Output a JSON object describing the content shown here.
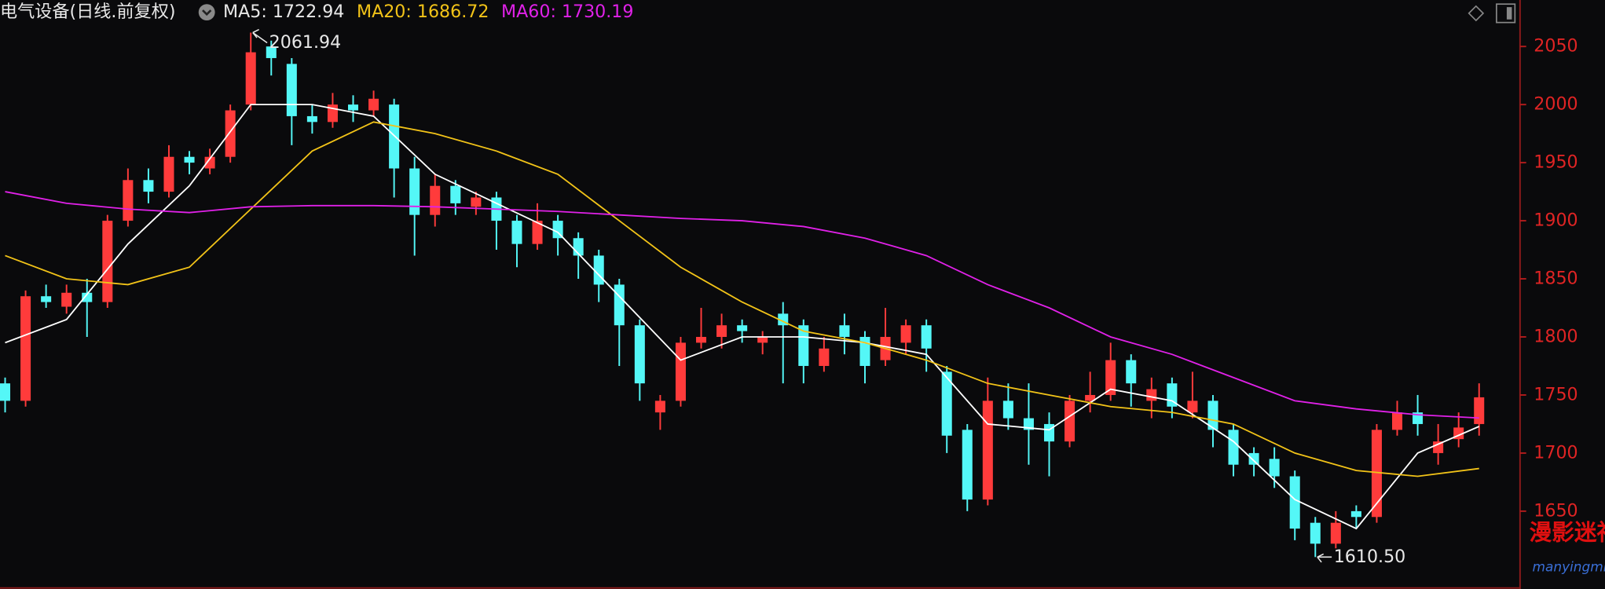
{
  "chart_data": {
    "type": "candlestick",
    "title": "电气设备(日线.前复权)",
    "ylim": [
      1583,
      2090
    ],
    "yticks": [
      1650,
      1700,
      1750,
      1800,
      1850,
      1900,
      1950,
      2000,
      2050
    ],
    "up_color": "#ff3b3b",
    "down_color": "#54f7f7",
    "ohlc": [
      [
        1760,
        1765,
        1735,
        1745
      ],
      [
        1745,
        1840,
        1740,
        1835
      ],
      [
        1835,
        1845,
        1825,
        1830
      ],
      [
        1826,
        1845,
        1820,
        1838
      ],
      [
        1838,
        1850,
        1800,
        1830
      ],
      [
        1830,
        1905,
        1825,
        1900
      ],
      [
        1900,
        1945,
        1895,
        1935
      ],
      [
        1935,
        1945,
        1915,
        1925
      ],
      [
        1925,
        1965,
        1920,
        1955
      ],
      [
        1955,
        1960,
        1940,
        1950
      ],
      [
        1945,
        1962,
        1940,
        1955
      ],
      [
        1955,
        2000,
        1950,
        1995
      ],
      [
        2000,
        2061.94,
        1995,
        2045
      ],
      [
        2050,
        2055,
        2025,
        2040
      ],
      [
        2035,
        2040,
        1965,
        1990
      ],
      [
        1990,
        2000,
        1975,
        1985
      ],
      [
        1985,
        2010,
        1980,
        2000
      ],
      [
        2000,
        2008,
        1985,
        1995
      ],
      [
        1995,
        2012,
        1990,
        2005
      ],
      [
        2000,
        2005,
        1920,
        1945
      ],
      [
        1945,
        1955,
        1870,
        1905
      ],
      [
        1905,
        1940,
        1895,
        1930
      ],
      [
        1930,
        1935,
        1905,
        1915
      ],
      [
        1912,
        1925,
        1905,
        1920
      ],
      [
        1920,
        1925,
        1875,
        1900
      ],
      [
        1900,
        1905,
        1860,
        1880
      ],
      [
        1880,
        1915,
        1875,
        1900
      ],
      [
        1900,
        1905,
        1870,
        1885
      ],
      [
        1885,
        1890,
        1850,
        1870
      ],
      [
        1870,
        1875,
        1830,
        1845
      ],
      [
        1845,
        1850,
        1775,
        1810
      ],
      [
        1810,
        1815,
        1745,
        1760
      ],
      [
        1735,
        1750,
        1720,
        1745
      ],
      [
        1745,
        1800,
        1740,
        1795
      ],
      [
        1795,
        1825,
        1790,
        1800
      ],
      [
        1800,
        1820,
        1790,
        1810
      ],
      [
        1810,
        1815,
        1795,
        1805
      ],
      [
        1795,
        1805,
        1785,
        1800
      ],
      [
        1820,
        1830,
        1760,
        1810
      ],
      [
        1810,
        1815,
        1760,
        1775
      ],
      [
        1775,
        1800,
        1770,
        1790
      ],
      [
        1810,
        1820,
        1785,
        1800
      ],
      [
        1800,
        1805,
        1760,
        1775
      ],
      [
        1780,
        1825,
        1775,
        1800
      ],
      [
        1795,
        1815,
        1785,
        1810
      ],
      [
        1810,
        1815,
        1770,
        1790
      ],
      [
        1770,
        1775,
        1700,
        1715
      ],
      [
        1720,
        1725,
        1650,
        1660
      ],
      [
        1660,
        1765,
        1655,
        1745
      ],
      [
        1745,
        1760,
        1720,
        1730
      ],
      [
        1730,
        1760,
        1690,
        1720
      ],
      [
        1725,
        1735,
        1680,
        1710
      ],
      [
        1710,
        1750,
        1705,
        1745
      ],
      [
        1745,
        1770,
        1735,
        1750
      ],
      [
        1750,
        1795,
        1745,
        1780
      ],
      [
        1780,
        1785,
        1740,
        1760
      ],
      [
        1745,
        1765,
        1730,
        1755
      ],
      [
        1760,
        1765,
        1730,
        1740
      ],
      [
        1735,
        1770,
        1730,
        1745
      ],
      [
        1745,
        1750,
        1705,
        1720
      ],
      [
        1720,
        1725,
        1680,
        1690
      ],
      [
        1700,
        1705,
        1680,
        1690
      ],
      [
        1695,
        1705,
        1670,
        1680
      ],
      [
        1680,
        1685,
        1625,
        1635
      ],
      [
        1640,
        1645,
        1610.5,
        1622
      ],
      [
        1622,
        1650,
        1618,
        1640
      ],
      [
        1650,
        1655,
        1635,
        1645
      ],
      [
        1645,
        1725,
        1640,
        1720
      ],
      [
        1720,
        1745,
        1715,
        1735
      ],
      [
        1735,
        1750,
        1715,
        1725
      ],
      [
        1700,
        1725,
        1690,
        1710
      ],
      [
        1712,
        1735,
        1705,
        1722
      ],
      [
        1725,
        1760,
        1715,
        1748
      ]
    ],
    "series": [
      {
        "name": "MA5: 1722.94",
        "color": "#ffffff",
        "x": [
          0,
          3,
          6,
          9,
          12,
          15,
          18,
          21,
          24,
          27,
          30,
          33,
          36,
          39,
          42,
          45,
          48,
          51,
          54,
          57,
          60,
          63,
          66,
          69,
          72
        ],
        "values": [
          1795,
          1815,
          1880,
          1930,
          2000,
          2000,
          1990,
          1940,
          1915,
          1890,
          1835,
          1780,
          1800,
          1800,
          1795,
          1785,
          1725,
          1720,
          1755,
          1745,
          1710,
          1660,
          1635,
          1700,
          1722.94
        ]
      },
      {
        "name": "MA20: 1686.72",
        "color": "#f2c318",
        "x": [
          0,
          3,
          6,
          9,
          12,
          15,
          18,
          21,
          24,
          27,
          30,
          33,
          36,
          39,
          42,
          45,
          48,
          51,
          54,
          57,
          60,
          63,
          66,
          69,
          72
        ],
        "values": [
          1870,
          1850,
          1845,
          1860,
          1910,
          1960,
          1985,
          1975,
          1960,
          1940,
          1900,
          1860,
          1830,
          1805,
          1795,
          1780,
          1760,
          1750,
          1740,
          1735,
          1725,
          1700,
          1685,
          1680,
          1686.72
        ]
      },
      {
        "name": "MA60: 1730.19",
        "color": "#e021e8",
        "x": [
          0,
          3,
          6,
          9,
          12,
          15,
          18,
          21,
          24,
          27,
          30,
          33,
          36,
          39,
          42,
          45,
          48,
          51,
          54,
          57,
          60,
          63,
          66,
          69,
          72
        ],
        "values": [
          1925,
          1915,
          1910,
          1907,
          1912,
          1913,
          1913,
          1912,
          1910,
          1908,
          1905,
          1902,
          1900,
          1895,
          1885,
          1870,
          1845,
          1825,
          1800,
          1785,
          1765,
          1745,
          1738,
          1733,
          1730.19
        ]
      }
    ],
    "annotations": [
      {
        "label": "2061.94",
        "index": 12,
        "value": 2061.94
      },
      {
        "label": "1610.50",
        "index": 64,
        "value": 1610.5
      }
    ],
    "watermark": {
      "title": "漫影迷社区",
      "url": "manyingmi.top"
    }
  }
}
